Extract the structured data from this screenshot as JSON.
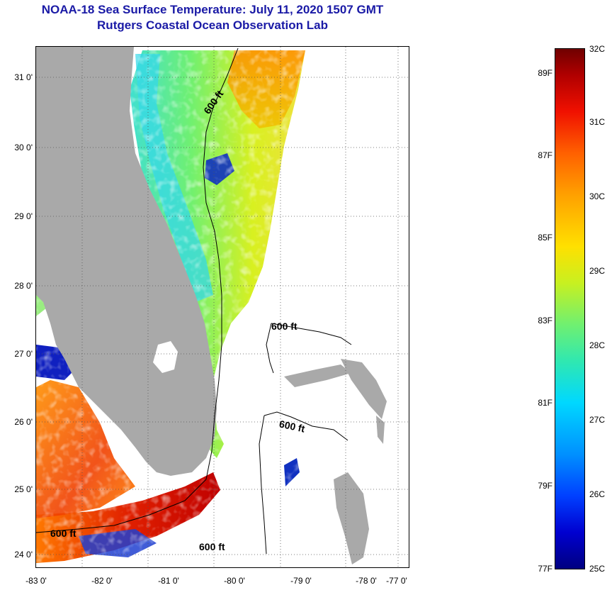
{
  "header": {
    "title": "NOAA-18 Sea Surface Temperature:  July 11, 2020 1507 GMT",
    "subtitle": "Rutgers Coastal Ocean Observation Lab"
  },
  "map": {
    "lat_labels": [
      "31 0'",
      "30 0'",
      "29 0'",
      "28 0'",
      "27 0'",
      "26 0'",
      "25 0'",
      "24 0'"
    ],
    "lon_labels": [
      "-83 0'",
      "-82 0'",
      "-81 0'",
      "-80 0'",
      "-79 0'",
      "-78 0'",
      "-77 0'"
    ],
    "contour_labels": [
      "600 ft",
      "600 ft",
      "600 ft",
      "600 ft",
      "600 ft"
    ]
  },
  "colorbar": {
    "celsius_labels": [
      "32C",
      "31C",
      "30C",
      "29C",
      "28C",
      "27C",
      "26C",
      "25C"
    ],
    "fahrenheit_labels": [
      "89F",
      "87F",
      "85F",
      "83F",
      "81F",
      "79F",
      "77F"
    ]
  },
  "colors": {
    "land": "#a9a9a9",
    "title": "#1a1aa6"
  }
}
